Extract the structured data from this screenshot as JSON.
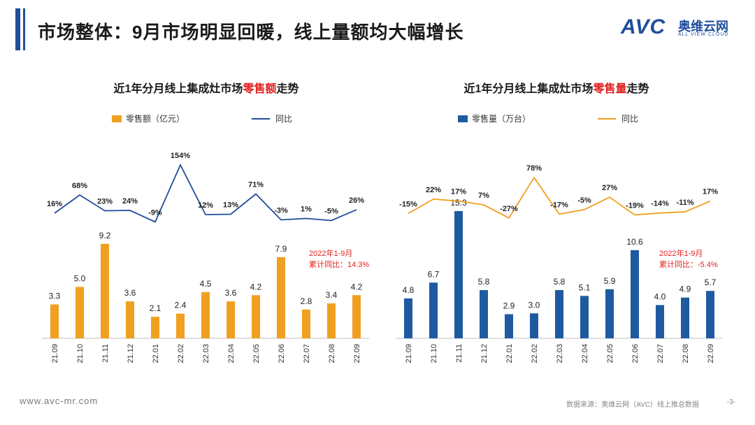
{
  "page": {
    "title": "市场整体：9月市场明显回暖，线上量额均大幅增长",
    "logo_text": "AVC",
    "logo_cn": "奥维云网",
    "logo_en": "ALL VIEW CLOUD",
    "footer_url": "www.avc-mr.com",
    "footer_source": "数据来源：奥维云网（AVC）线上推总数据",
    "page_number": "-3-"
  },
  "colors": {
    "bar_left": "#f0a020",
    "line_left": "#1f4e9c",
    "bar_right": "#1f5aa0",
    "line_right": "#f0a020",
    "annotation": "#e02020"
  },
  "chart_data": [
    {
      "type": "bar",
      "title_prefix": "近1年分月线上集成灶市场",
      "title_highlight": "零售额",
      "title_suffix": "走势",
      "bar_series_name": "零售额（亿元）",
      "line_series_name": "同比",
      "categories": [
        "21.09",
        "21.10",
        "21.11",
        "21.12",
        "22.01",
        "22.02",
        "22.03",
        "22.04",
        "22.05",
        "22.06",
        "22.07",
        "22.08",
        "22.09"
      ],
      "values": [
        3.3,
        5.0,
        9.2,
        3.6,
        2.1,
        2.4,
        4.5,
        3.6,
        4.2,
        7.9,
        2.8,
        3.4,
        4.2
      ],
      "value_labels": [
        "3.3",
        "5.0",
        "9.2",
        "3.6",
        "2.1",
        "2.4",
        "4.5",
        "3.6",
        "4.2",
        "7.9",
        "2.8",
        "3.4",
        "4.2"
      ],
      "yoy": [
        16,
        68,
        23,
        24,
        -9,
        154,
        12,
        13,
        71,
        -3,
        1,
        -5,
        26
      ],
      "yoy_labels": [
        "16%",
        "68%",
        "23%",
        "24%",
        "-9%",
        "154%",
        "12%",
        "13%",
        "71%",
        "-3%",
        "1%",
        "-5%",
        "26%"
      ],
      "annotation_line1": "2022年1-9月",
      "annotation_line2": "累计同比：14.3%"
    },
    {
      "type": "bar",
      "title_prefix": "近1年分月线上集成灶市场",
      "title_highlight": "零售量",
      "title_suffix": "走势",
      "bar_series_name": "零售量（万台）",
      "line_series_name": "同比",
      "categories": [
        "21.09",
        "21.10",
        "21.11",
        "21.12",
        "22.01",
        "22.02",
        "22.03",
        "22.04",
        "22.05",
        "22.06",
        "22.07",
        "22.08",
        "22.09"
      ],
      "values": [
        4.8,
        6.7,
        15.3,
        5.8,
        2.9,
        3.0,
        5.8,
        5.1,
        5.9,
        10.6,
        4.0,
        4.9,
        5.7
      ],
      "value_labels": [
        "4.8",
        "6.7",
        "15.3",
        "5.8",
        "2.9",
        "3.0",
        "5.8",
        "5.1",
        "5.9",
        "10.6",
        "4.0",
        "4.9",
        "5.7"
      ],
      "yoy": [
        -15,
        22,
        17,
        7,
        -27,
        78,
        -17,
        -5,
        27,
        -19,
        -14,
        -11,
        17
      ],
      "yoy_labels": [
        "-15%",
        "22%",
        "17%",
        "7%",
        "-27%",
        "78%",
        "-17%",
        "-5%",
        "27%",
        "-19%",
        "-14%",
        "-11%",
        "17%"
      ],
      "annotation_line1": "2022年1-9月",
      "annotation_line2": "累计同比：-5.4%"
    }
  ]
}
